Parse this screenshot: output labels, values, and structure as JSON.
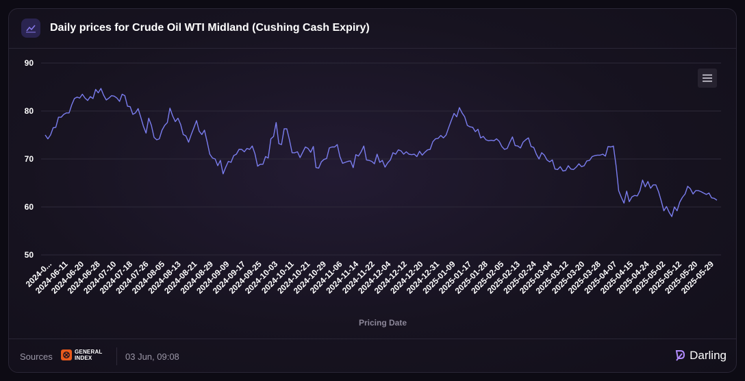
{
  "header": {
    "title": "Daily prices for Crude Oil WTI Midland (Cushing Cash Expiry)",
    "icon": "line-chart-icon"
  },
  "toolbar": {
    "menu_icon": "hamburger-menu-icon"
  },
  "footer": {
    "sources_label": "Sources",
    "source_logo_top": "GENERAL",
    "source_logo_bottom": "INDEX",
    "timestamp": "03 Jun, 09:08",
    "brand_name": "Darling"
  },
  "colors": {
    "line": "#7b7ef0",
    "grid": "#2e2a3a",
    "text": "#ffffff",
    "muted": "#8d889a",
    "accent": "#e85a1c",
    "brand": "#b28cff"
  },
  "chart_data": {
    "type": "line",
    "title": "Daily prices for Crude Oil WTI Midland (Cushing Cash Expiry)",
    "xlabel": "Pricing Date",
    "ylabel": "",
    "ylim": [
      50,
      90
    ],
    "yticks": [
      50,
      60,
      70,
      80,
      90
    ],
    "grid": true,
    "x_tick_labels": [
      "2024-0...",
      "2024-06-11",
      "2024-06-20",
      "2024-06-28",
      "2024-07-10",
      "2024-07-18",
      "2024-07-26",
      "2024-08-05",
      "2024-08-13",
      "2024-08-21",
      "2024-08-29",
      "2024-09-09",
      "2024-09-17",
      "2024-09-25",
      "2024-10-03",
      "2024-10-11",
      "2024-10-21",
      "2024-10-29",
      "2024-11-06",
      "2024-11-14",
      "2024-11-22",
      "2024-12-04",
      "2024-12-12",
      "2024-12-20",
      "2024-12-31",
      "2025-01-09",
      "2025-01-17",
      "2025-01-28",
      "2025-02-05",
      "2025-02-13",
      "2025-02-24",
      "2025-03-04",
      "2025-03-12",
      "2025-03-20",
      "2025-03-28",
      "2025-04-07",
      "2025-04-15",
      "2025-04-24",
      "2025-05-02",
      "2025-05-12",
      "2025-05-20",
      "2025-05-29"
    ],
    "series": [
      {
        "values": [
          75.0,
          74.2,
          75.0,
          76.5,
          76.6,
          78.7,
          78.7,
          79.3,
          79.6,
          79.6,
          81.3,
          82.6,
          82.9,
          82.7,
          83.5,
          82.7,
          82.2,
          83.0,
          82.6,
          84.5,
          83.8,
          84.7,
          83.3,
          82.3,
          82.7,
          83.2,
          83.1,
          82.7,
          82.0,
          83.5,
          83.2,
          81.0,
          80.9,
          79.3,
          79.6,
          80.5,
          78.7,
          76.8,
          75.4,
          78.5,
          77.0,
          74.5,
          74.0,
          74.2,
          76.0,
          77.0,
          77.6,
          80.6,
          79.0,
          77.8,
          78.5,
          77.2,
          75.1,
          74.8,
          73.5,
          75.1,
          76.5,
          78.0,
          75.8,
          75.1,
          76.0,
          73.6,
          71.0,
          70.2,
          70.0,
          68.6,
          69.7,
          66.9,
          68.3,
          69.5,
          69.3,
          70.7,
          71.0,
          72.0,
          72.0,
          71.5,
          72.2,
          72.0,
          72.7,
          71.1,
          68.5,
          68.9,
          68.9,
          70.5,
          70.2,
          74.2,
          74.7,
          77.6,
          73.2,
          73.0,
          76.3,
          76.3,
          74.0,
          71.3,
          71.3,
          71.5,
          70.3,
          71.4,
          72.5,
          72.2,
          71.4,
          72.6,
          68.2,
          68.1,
          69.4,
          69.9,
          70.1,
          72.3,
          72.5,
          72.5,
          73.0,
          70.5,
          69.1,
          69.3,
          69.5,
          69.6,
          68.2,
          70.9,
          70.6,
          71.5,
          72.7,
          69.8,
          69.7,
          69.5,
          69.0,
          71.0,
          69.3,
          69.7,
          68.3,
          69.2,
          69.8,
          71.3,
          71.0,
          71.9,
          71.7,
          71.0,
          71.5,
          71.0,
          70.9,
          71.0,
          70.5,
          71.6,
          70.8,
          71.4,
          71.9,
          72.0,
          73.6,
          74.2,
          74.3,
          74.9,
          74.4,
          75.0,
          76.6,
          78.1,
          79.5,
          78.8,
          80.7,
          79.6,
          78.8,
          77.0,
          76.7,
          76.6,
          75.7,
          76.2,
          74.4,
          74.7,
          74.0,
          73.8,
          73.9,
          73.8,
          74.2,
          73.7,
          72.6,
          72.0,
          72.2,
          73.5,
          74.6,
          72.8,
          72.7,
          72.3,
          73.5,
          74.0,
          74.4,
          72.6,
          72.4,
          71.0,
          70.0,
          71.3,
          70.8,
          69.8,
          69.4,
          69.8,
          67.9,
          67.8,
          68.4,
          67.5,
          67.6,
          68.6,
          67.9,
          67.8,
          68.3,
          69.0,
          68.4,
          68.6,
          69.6,
          69.7,
          70.5,
          70.7,
          70.8,
          70.8,
          71.0,
          70.6,
          72.6,
          72.5,
          72.7,
          68.6,
          63.4,
          62.0,
          60.8,
          63.3,
          61.1,
          62.1,
          62.4,
          62.3,
          63.4,
          65.6,
          64.2,
          65.3,
          63.9,
          64.6,
          64.6,
          63.2,
          61.3,
          59.2,
          60.1,
          58.9,
          58.0,
          60.0,
          59.2,
          61.0,
          62.0,
          62.7,
          64.3,
          63.8,
          62.7,
          63.4,
          63.4,
          63.2,
          62.9,
          62.6,
          62.9,
          61.9,
          61.8,
          61.4
        ]
      }
    ]
  }
}
